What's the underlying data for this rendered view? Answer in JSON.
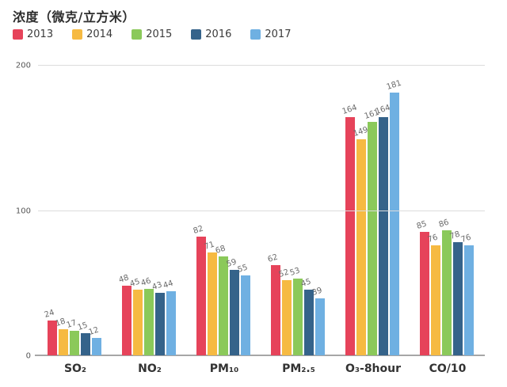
{
  "chart_data": {
    "type": "bar",
    "title": "浓度（微克/立方米）",
    "categories": [
      "SO₂",
      "NO₂",
      "PM₁₀",
      "PM₂.₅",
      "O₃-8hour",
      "CO/10"
    ],
    "series": [
      {
        "name": "2013",
        "color": "#e6435a",
        "values": [
          24,
          48,
          82,
          62,
          164,
          85
        ]
      },
      {
        "name": "2014",
        "color": "#f6ba42",
        "values": [
          18,
          45,
          71,
          52,
          149,
          76
        ]
      },
      {
        "name": "2015",
        "color": "#8bc95a",
        "values": [
          17,
          46,
          68,
          53,
          161,
          86
        ]
      },
      {
        "name": "2016",
        "color": "#35638a",
        "values": [
          15,
          43,
          59,
          45,
          164,
          78
        ]
      },
      {
        "name": "2017",
        "color": "#6fb0e2",
        "values": [
          12,
          44,
          55,
          39,
          181,
          76
        ]
      }
    ],
    "ylim": [
      0,
      200
    ],
    "yticks": [
      0,
      100,
      200
    ],
    "grid": true,
    "legend_position": "top-left",
    "value_labels_shown": true
  }
}
